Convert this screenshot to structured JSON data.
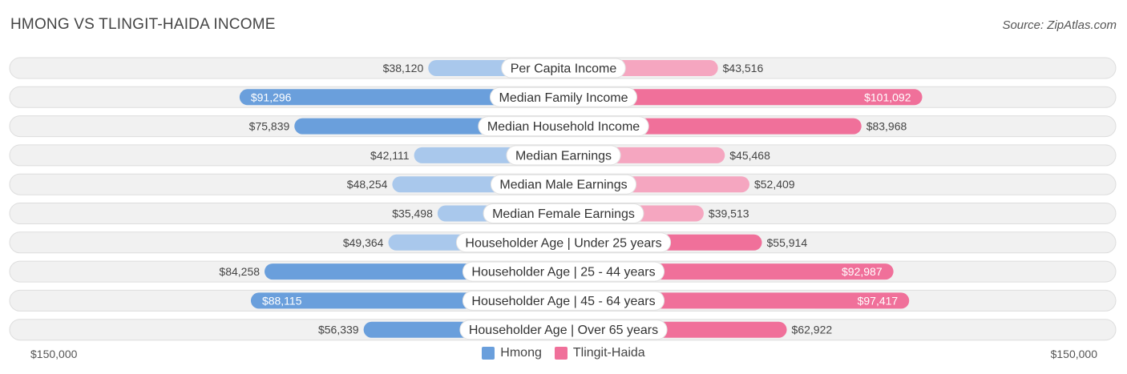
{
  "header": {
    "title": "HMONG VS TLINGIT-HAIDA INCOME",
    "source": "Source: ZipAtlas.com"
  },
  "colors": {
    "hmong_dark": "#6a9fdc",
    "hmong_light": "#a9c8ec",
    "tlingit_dark": "#f0709a",
    "tlingit_light": "#f5a6c0"
  },
  "chart_data": {
    "type": "bar",
    "orientation": "horizontal-diverging",
    "title": "HMONG VS TLINGIT-HAIDA INCOME",
    "xlim": [
      -150000,
      150000
    ],
    "axis_labels": {
      "left": "$150,000",
      "right": "$150,000"
    },
    "categories": [
      "Per Capita Income",
      "Median Family Income",
      "Median Household Income",
      "Median Earnings",
      "Median Male Earnings",
      "Median Female Earnings",
      "Householder Age | Under 25 years",
      "Householder Age | 25 - 44 years",
      "Householder Age | 45 - 64 years",
      "Householder Age | Over 65 years"
    ],
    "series": [
      {
        "name": "Hmong",
        "side": "left",
        "values": [
          38120,
          91296,
          75839,
          42111,
          48254,
          35498,
          49364,
          84258,
          88115,
          56339
        ],
        "labels": [
          "$38,120",
          "$91,296",
          "$75,839",
          "$42,111",
          "$48,254",
          "$35,498",
          "$49,364",
          "$84,258",
          "$88,115",
          "$56,339"
        ]
      },
      {
        "name": "Tlingit-Haida",
        "side": "right",
        "values": [
          43516,
          101092,
          83968,
          45468,
          52409,
          39513,
          55914,
          92987,
          97417,
          62922
        ],
        "labels": [
          "$43,516",
          "$101,092",
          "$83,968",
          "$45,468",
          "$52,409",
          "$39,513",
          "$55,914",
          "$92,987",
          "$97,417",
          "$62,922"
        ]
      }
    ],
    "legend": [
      "Hmong",
      "Tlingit-Haida"
    ]
  }
}
